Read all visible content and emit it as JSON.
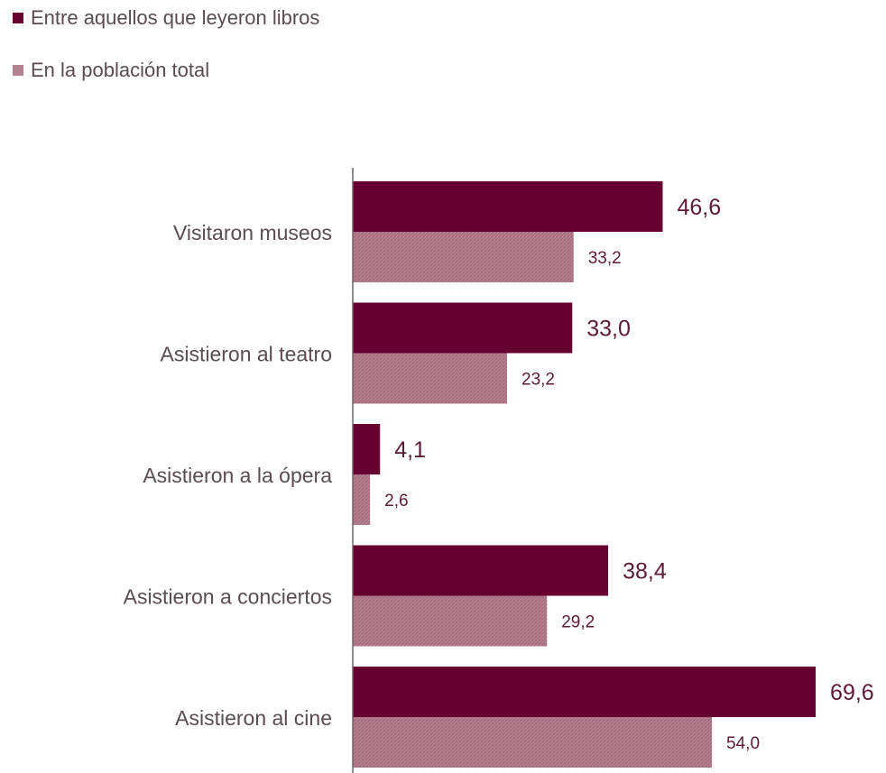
{
  "legend": {
    "series1": "Entre aquellos que leyeron libros",
    "series2": "En la población total"
  },
  "colors": {
    "series1": "#650030",
    "series2": "#b5808f",
    "series2_hatch": "#9d6476",
    "axis": "#666666"
  },
  "chart_data": {
    "type": "bar",
    "orientation": "horizontal",
    "categories": [
      "Visitaron museos",
      "Asistieron al teatro",
      "Asistieron a la ópera",
      "Asistieron a conciertos",
      "Asistieron al cine"
    ],
    "series": [
      {
        "name": "Entre aquellos que leyeron libros",
        "values": [
          46.6,
          33.0,
          4.1,
          38.4,
          69.6
        ],
        "labels": [
          "46,6",
          "33,0",
          "4,1",
          "38,4",
          "69,6"
        ]
      },
      {
        "name": "En la población total",
        "values": [
          33.2,
          23.2,
          2.6,
          29.2,
          54.0
        ],
        "labels": [
          "33,2",
          "23,2",
          "2,6",
          "29,2",
          "54,0"
        ]
      }
    ],
    "xlim": [
      0,
      70
    ],
    "grid": false,
    "legend_position": "top-left"
  }
}
